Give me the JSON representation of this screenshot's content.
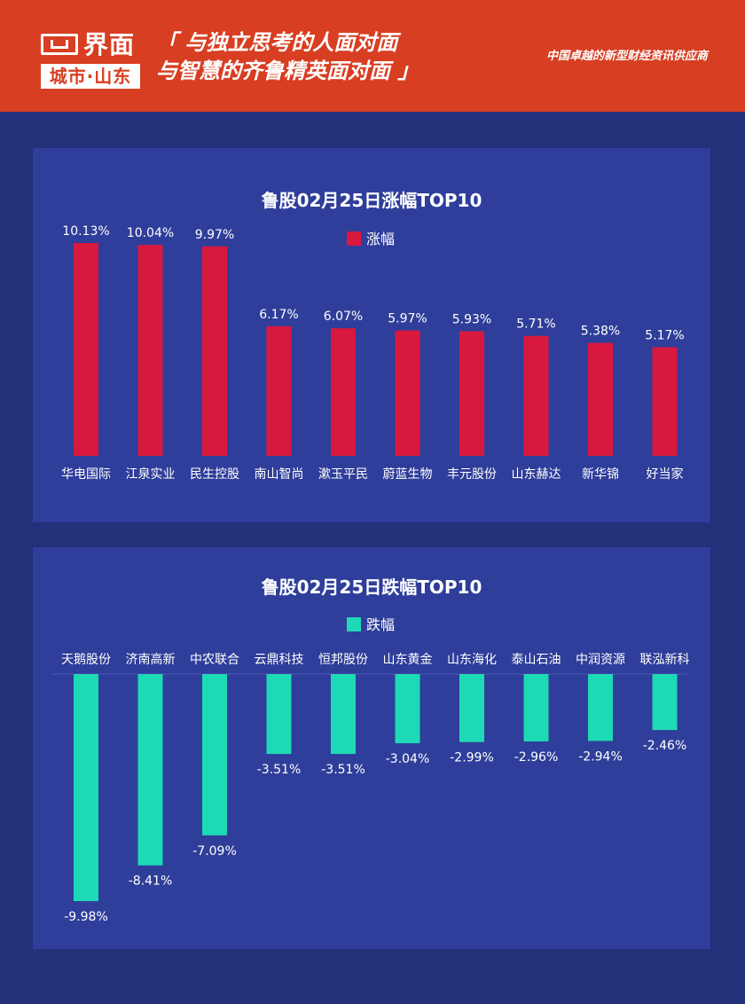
{
  "header": {
    "logo_name": "界面",
    "logo_sub": "城市·山东",
    "slogan_line1": "「 与独立思考的人面对面",
    "slogan_line2": "与智慧的齐鲁精英面对面 」",
    "tagline": "中国卓越的新型财经资讯供应商"
  },
  "colors": {
    "header_bg": "#d83e22",
    "page_bg": "#23307a",
    "panel_bg": "#2f3e9a",
    "rise": "#d9183e",
    "fall": "#1ed9b6"
  },
  "chart_data": [
    {
      "type": "bar",
      "title": "鲁股02月25日涨幅TOP10",
      "legend": "涨幅",
      "categories": [
        "华电国际",
        "江泉实业",
        "民生控股",
        "南山智尚",
        "漱玉平民",
        "蔚蓝生物",
        "丰元股份",
        "山东赫达",
        "新华锦",
        "好当家"
      ],
      "values": [
        10.13,
        10.04,
        9.97,
        6.17,
        6.07,
        5.97,
        5.93,
        5.71,
        5.38,
        5.17
      ],
      "value_labels": [
        "10.13%",
        "10.04%",
        "9.97%",
        "6.17%",
        "6.07%",
        "5.97%",
        "5.93%",
        "5.71%",
        "5.38%",
        "5.17%"
      ],
      "ylim": [
        0,
        10.13
      ],
      "color": "#d9183e",
      "legend_position": "top-center"
    },
    {
      "type": "bar",
      "title": "鲁股02月25日跌幅TOP10",
      "legend": "跌幅",
      "categories": [
        "天鹅股份",
        "济南高新",
        "中农联合",
        "云鼎科技",
        "恒邦股份",
        "山东黄金",
        "山东海化",
        "泰山石油",
        "中润资源",
        "联泓新科"
      ],
      "values": [
        -9.98,
        -8.41,
        -7.09,
        -3.51,
        -3.51,
        -3.04,
        -2.99,
        -2.96,
        -2.94,
        -2.46
      ],
      "value_labels": [
        "-9.98%",
        "-8.41%",
        "-7.09%",
        "-3.51%",
        "-3.51%",
        "-3.04%",
        "-2.99%",
        "-2.96%",
        "-2.94%",
        "-2.46%"
      ],
      "ylim": [
        -9.98,
        0
      ],
      "color": "#1ed9b6",
      "legend_position": "top-center"
    }
  ]
}
